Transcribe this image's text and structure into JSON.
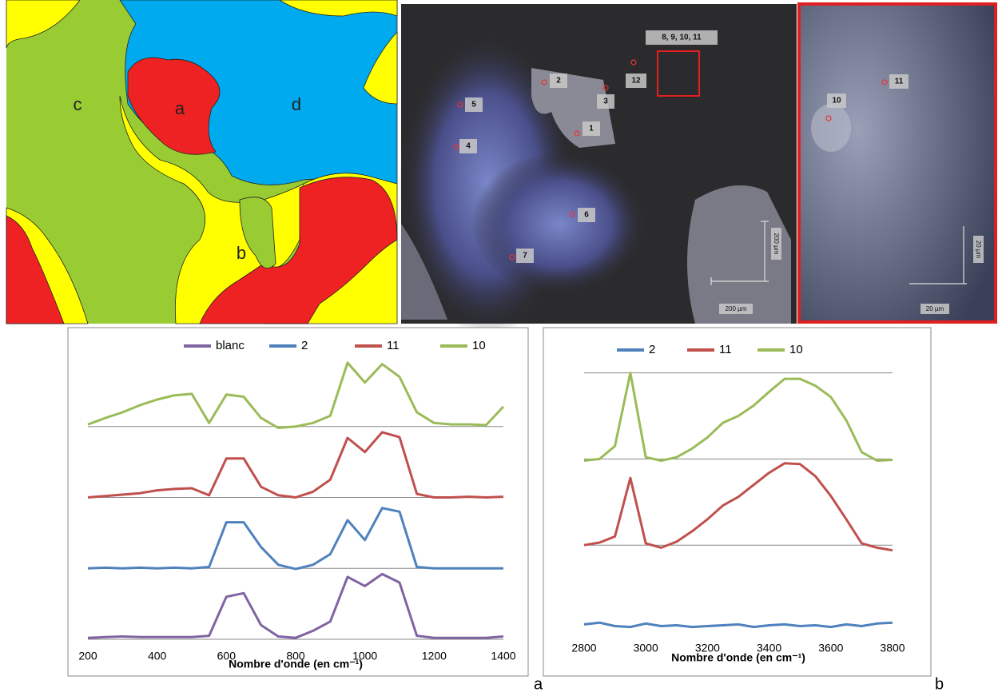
{
  "images": {
    "map": {
      "labels": [
        "a",
        "b",
        "c",
        "d"
      ]
    },
    "micrograph": {
      "spots": [
        "1",
        "2",
        "3",
        "4",
        "5",
        "6",
        "7",
        "12"
      ],
      "zone_label": "8, 9, 10, 11",
      "scale_horizontal": "200 µm",
      "scale_vertical": "200 µm"
    },
    "zoom": {
      "spots": [
        "10",
        "11"
      ],
      "scale_horizontal": "20 µm",
      "scale_vertical": "20 µm"
    }
  },
  "panel_labels": [
    "a",
    "b"
  ],
  "chart_data": [
    {
      "type": "line",
      "xlabel": "Nombre d'onde (en cm⁻¹)",
      "legend": "top",
      "x": [
        200,
        250,
        300,
        350,
        400,
        450,
        500,
        550,
        600,
        650,
        700,
        750,
        800,
        850,
        900,
        950,
        1000,
        1050,
        1100,
        1150,
        1200,
        1250,
        1300,
        1350,
        1400
      ],
      "xlim": [
        200,
        1400
      ],
      "xticks": [
        200,
        400,
        600,
        800,
        1000,
        1200,
        1400
      ],
      "ylim": [
        0,
        4
      ],
      "baselines": [
        0,
        1,
        2,
        3
      ],
      "series": [
        {
          "name": "blanc",
          "color": "#8064a2",
          "values": [
            0.02,
            0.03,
            0.04,
            0.03,
            0.03,
            0.03,
            0.03,
            0.05,
            0.6,
            0.65,
            0.2,
            0.04,
            0.02,
            0.12,
            0.25,
            0.88,
            0.75,
            0.92,
            0.8,
            0.05,
            0.02,
            0.02,
            0.02,
            0.02,
            0.04
          ]
        },
        {
          "name": "2",
          "color": "#4f81bd",
          "values": [
            1.0,
            1.01,
            1.0,
            1.01,
            1.0,
            1.01,
            1.0,
            1.02,
            1.65,
            1.65,
            1.3,
            1.05,
            0.99,
            1.05,
            1.2,
            1.68,
            1.4,
            1.85,
            1.8,
            1.02,
            1.0,
            1.0,
            1.0,
            1.0,
            1.0
          ]
        },
        {
          "name": "11",
          "color": "#c0504d",
          "values": [
            2.0,
            2.02,
            2.04,
            2.06,
            2.1,
            2.12,
            2.13,
            2.03,
            2.55,
            2.55,
            2.15,
            2.03,
            2.0,
            2.08,
            2.25,
            2.84,
            2.64,
            2.92,
            2.85,
            2.05,
            2.0,
            2.0,
            2.01,
            2.0,
            2.01
          ]
        },
        {
          "name": "10",
          "color": "#9bbb59",
          "values": [
            3.03,
            3.12,
            3.2,
            3.3,
            3.38,
            3.44,
            3.46,
            3.05,
            3.45,
            3.42,
            3.12,
            2.98,
            3.0,
            3.05,
            3.15,
            3.9,
            3.62,
            3.88,
            3.7,
            3.2,
            3.05,
            3.03,
            3.03,
            3.02,
            3.28
          ]
        }
      ]
    },
    {
      "type": "line",
      "xlabel": "Nombre d'onde (en cm⁻¹)",
      "legend": "top",
      "x": [
        2800,
        2850,
        2900,
        2950,
        3000,
        3050,
        3100,
        3150,
        3200,
        3250,
        3300,
        3350,
        3400,
        3450,
        3500,
        3550,
        3600,
        3650,
        3700,
        3750,
        3800
      ],
      "xlim": [
        2800,
        3800
      ],
      "xticks": [
        2800,
        3000,
        3200,
        3400,
        3600,
        3800
      ],
      "ylim": [
        0,
        3.2
      ],
      "baselines": [
        1,
        2,
        3
      ],
      "series": [
        {
          "name": "2",
          "color": "#4f81bd",
          "values": [
            0.08,
            0.1,
            0.06,
            0.05,
            0.09,
            0.06,
            0.07,
            0.05,
            0.06,
            0.07,
            0.08,
            0.05,
            0.07,
            0.08,
            0.06,
            0.07,
            0.05,
            0.08,
            0.06,
            0.09,
            0.1
          ]
        },
        {
          "name": "11",
          "color": "#c0504d",
          "values": [
            1.0,
            1.03,
            1.1,
            1.78,
            1.02,
            0.97,
            1.04,
            1.16,
            1.3,
            1.46,
            1.56,
            1.7,
            1.84,
            1.95,
            1.94,
            1.8,
            1.57,
            1.3,
            1.02,
            0.97,
            0.94
          ]
        },
        {
          "name": "10",
          "color": "#9bbb59",
          "values": [
            1.98,
            2.0,
            2.15,
            3.0,
            2.02,
            1.98,
            2.02,
            2.12,
            2.25,
            2.42,
            2.5,
            2.62,
            2.78,
            2.93,
            2.93,
            2.85,
            2.72,
            2.45,
            2.08,
            1.98,
            1.99
          ]
        }
      ]
    }
  ]
}
